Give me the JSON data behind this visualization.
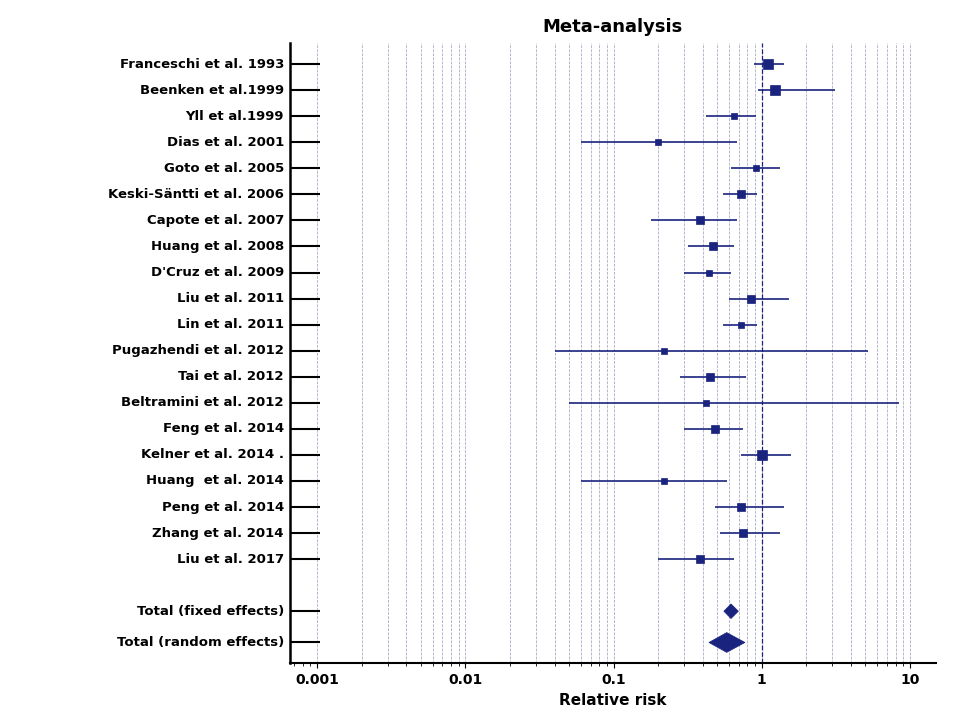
{
  "title": "Meta-analysis",
  "xlabel": "Relative risk",
  "studies": [
    {
      "label": "Franceschi et al. 1993",
      "rr": 1.1,
      "ci_low": 0.88,
      "ci_high": 1.42,
      "ms": 7
    },
    {
      "label": "Beenken et al.1999",
      "rr": 1.22,
      "ci_low": 0.95,
      "ci_high": 3.1,
      "ms": 7
    },
    {
      "label": "Yll et al.1999",
      "rr": 0.65,
      "ci_low": 0.42,
      "ci_high": 0.92,
      "ms": 5
    },
    {
      "label": "Dias et al. 2001",
      "rr": 0.2,
      "ci_low": 0.06,
      "ci_high": 0.68,
      "ms": 5
    },
    {
      "label": "Goto et al. 2005",
      "rr": 0.92,
      "ci_low": 0.62,
      "ci_high": 1.32,
      "ms": 5
    },
    {
      "label": "Keski-Säntti et al. 2006",
      "rr": 0.72,
      "ci_low": 0.55,
      "ci_high": 0.93,
      "ms": 6
    },
    {
      "label": "Capote et al. 2007",
      "rr": 0.38,
      "ci_low": 0.18,
      "ci_high": 0.68,
      "ms": 6
    },
    {
      "label": "Huang et al. 2008",
      "rr": 0.47,
      "ci_low": 0.32,
      "ci_high": 0.65,
      "ms": 6
    },
    {
      "label": "D'Cruz et al. 2009",
      "rr": 0.44,
      "ci_low": 0.3,
      "ci_high": 0.62,
      "ms": 5
    },
    {
      "label": "Liu et al. 2011",
      "rr": 0.85,
      "ci_low": 0.6,
      "ci_high": 1.52,
      "ms": 6
    },
    {
      "label": "Lin et al. 2011",
      "rr": 0.72,
      "ci_low": 0.55,
      "ci_high": 0.93,
      "ms": 5
    },
    {
      "label": "Pugazhendi et al. 2012",
      "rr": 0.22,
      "ci_low": 0.04,
      "ci_high": 5.2,
      "ms": 5
    },
    {
      "label": "Tai et al. 2012",
      "rr": 0.45,
      "ci_low": 0.28,
      "ci_high": 0.78,
      "ms": 6
    },
    {
      "label": "Beltramini et al. 2012",
      "rr": 0.42,
      "ci_low": 0.05,
      "ci_high": 8.5,
      "ms": 5
    },
    {
      "label": "Feng et al. 2014",
      "rr": 0.48,
      "ci_low": 0.3,
      "ci_high": 0.75,
      "ms": 6
    },
    {
      "label": "Kelner et al. 2014 .",
      "rr": 1.0,
      "ci_low": 0.72,
      "ci_high": 1.58,
      "ms": 7
    },
    {
      "label": "Huang  et al. 2014",
      "rr": 0.22,
      "ci_low": 0.06,
      "ci_high": 0.58,
      "ms": 5
    },
    {
      "label": "Peng et al. 2014",
      "rr": 0.72,
      "ci_low": 0.48,
      "ci_high": 1.42,
      "ms": 6
    },
    {
      "label": "Zhang et al. 2014",
      "rr": 0.75,
      "ci_low": 0.52,
      "ci_high": 1.32,
      "ms": 6
    },
    {
      "label": "Liu et al. 2017",
      "rr": 0.38,
      "ci_low": 0.2,
      "ci_high": 0.65,
      "ms": 6
    }
  ],
  "total_fixed": {
    "rr": 0.62,
    "ci_low": 0.555,
    "ci_high": 0.695
  },
  "total_random": {
    "rr": 0.58,
    "ci_low": 0.44,
    "ci_high": 0.77
  },
  "color": "#1a237e",
  "grid_color": "#9999bb",
  "label_fontsize": 9.5,
  "title_fontsize": 13,
  "xlabel_fontsize": 11
}
